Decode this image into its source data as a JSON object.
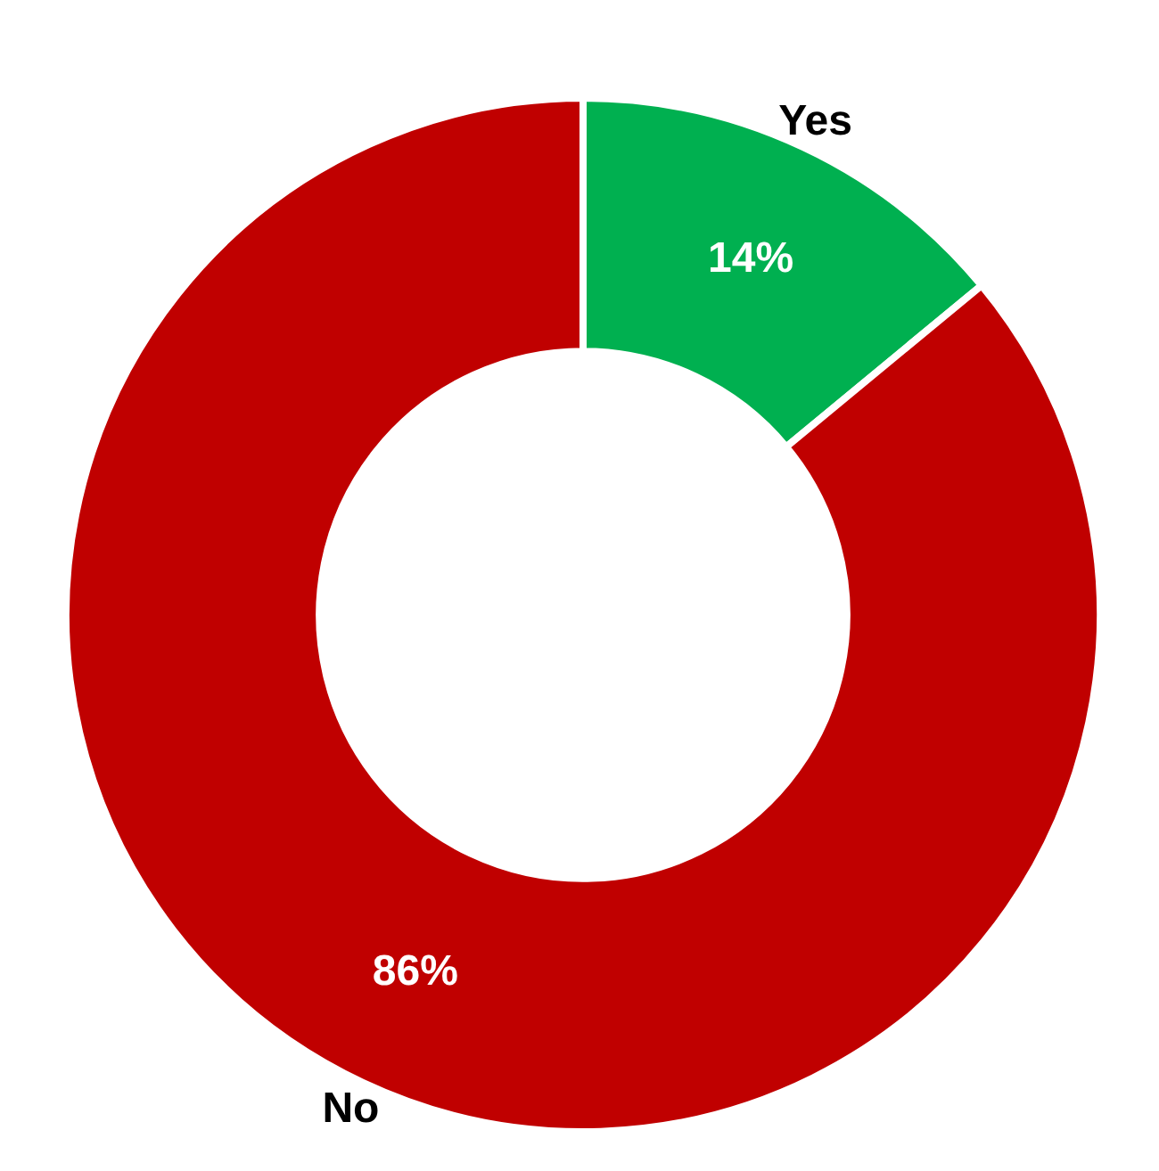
{
  "chart_data": {
    "type": "donut",
    "categories": [
      "Yes",
      "No"
    ],
    "values": [
      14,
      86
    ],
    "colors": [
      "#00b050",
      "#c00000"
    ],
    "value_labels": [
      "14%",
      "86%"
    ],
    "legend": false
  }
}
